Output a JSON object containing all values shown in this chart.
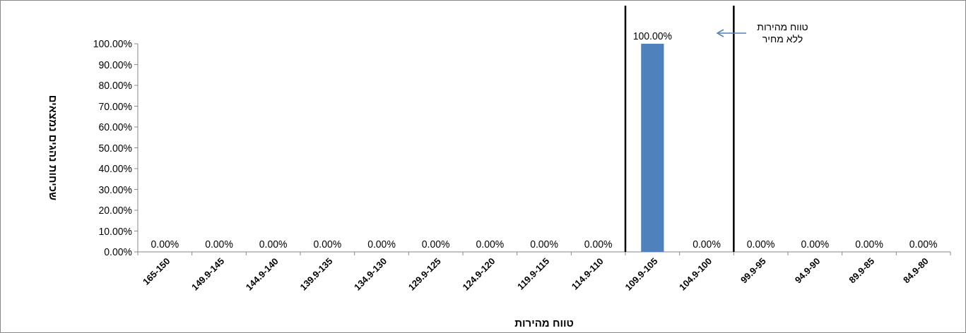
{
  "chart_data": {
    "type": "bar",
    "xlabel": "טווח מהירות",
    "ylabel": "שכיחות נהגים נמצאים",
    "categories": [
      "165-150",
      "149.9-145",
      "144.9-140",
      "139.9-135",
      "134.9-130",
      "129.9-125",
      "124.9-120",
      "119.9-115",
      "114.9-110",
      "109.9-105",
      "104.9-100",
      "99.9-95",
      "94.9-90",
      "89.9-85",
      "84.9-80"
    ],
    "values": [
      0,
      0,
      0,
      0,
      0,
      0,
      0,
      0,
      0,
      100,
      0,
      0,
      0,
      0,
      0
    ],
    "value_labels": [
      "0.00%",
      "0.00%",
      "0.00%",
      "0.00%",
      "0.00%",
      "0.00%",
      "0.00%",
      "0.00%",
      "0.00%",
      "100.00%",
      "0.00%",
      "0.00%",
      "0.00%",
      "0.00%",
      "0.00%"
    ],
    "color": "#4f81bd",
    "ylim": [
      0,
      100
    ],
    "yticks": [
      {
        "value": 0,
        "label": "0.00%"
      },
      {
        "value": 10,
        "label": "10.00%"
      },
      {
        "value": 20,
        "label": "20.00%"
      },
      {
        "value": 30,
        "label": "30.00%"
      },
      {
        "value": 40,
        "label": "40.00%"
      },
      {
        "value": 50,
        "label": "50.00%"
      },
      {
        "value": 60,
        "label": "60.00%"
      },
      {
        "value": 70,
        "label": "70.00%"
      },
      {
        "value": 80,
        "label": "80.00%"
      },
      {
        "value": 90,
        "label": "90.00%"
      },
      {
        "value": 100,
        "label": "100.00%"
      }
    ],
    "annotations": [
      "טווח מהירות ללא מחיר"
    ],
    "grid": false
  }
}
